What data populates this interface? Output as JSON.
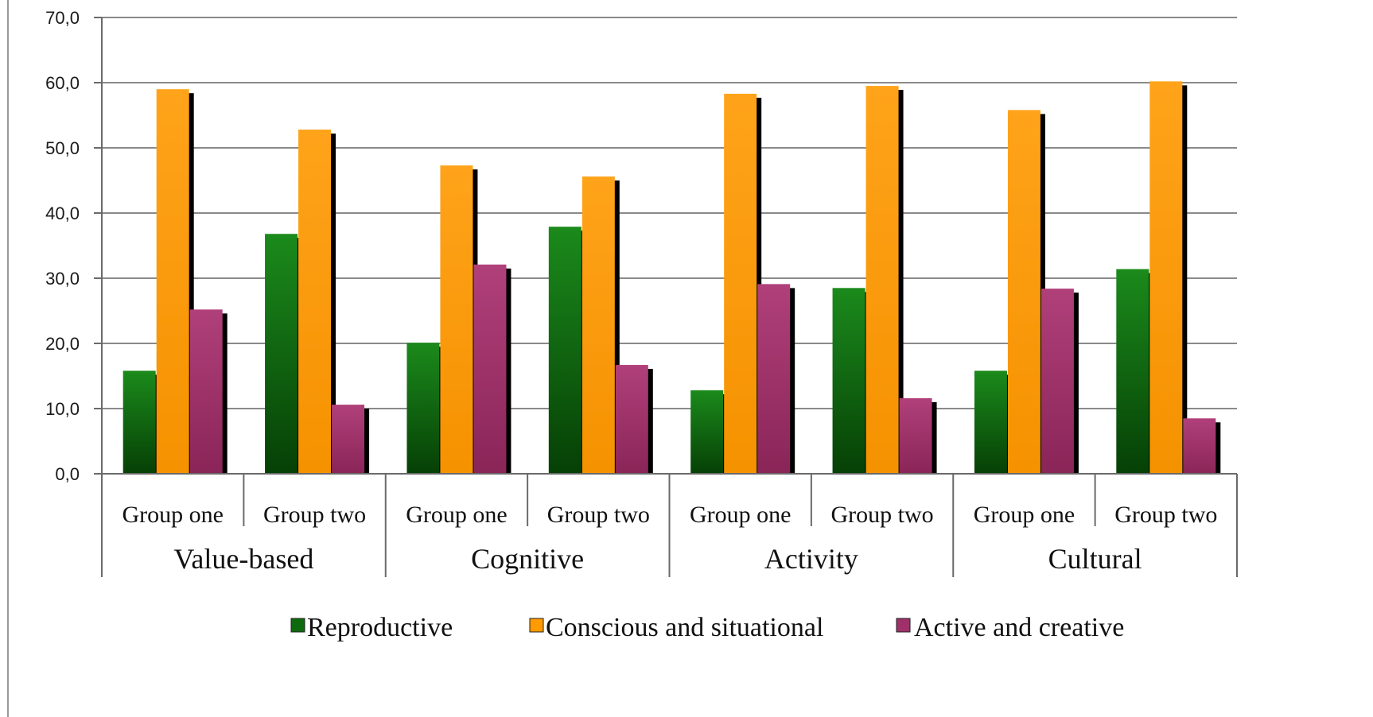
{
  "chart_data": {
    "type": "bar",
    "groups": [
      {
        "label": "Value-based",
        "subcategories": [
          "Group one",
          "Group two"
        ]
      },
      {
        "label": "Cognitive",
        "subcategories": [
          "Group one",
          "Group two"
        ]
      },
      {
        "label": "Activity",
        "subcategories": [
          "Group one",
          "Group two"
        ]
      },
      {
        "label": "Cultural",
        "subcategories": [
          "Group one",
          "Group two"
        ]
      }
    ],
    "series": [
      {
        "name": "Reproductive",
        "color": "#0d6b0d",
        "values": [
          15.8,
          36.8,
          20.1,
          37.9,
          12.8,
          28.5,
          15.8,
          31.4
        ]
      },
      {
        "name": "Conscious and situational",
        "color": "#ff9a00",
        "values": [
          59.0,
          52.8,
          47.3,
          45.6,
          58.3,
          59.5,
          55.8,
          60.2
        ]
      },
      {
        "name": "Active and creative",
        "color": "#a0306a",
        "values": [
          25.2,
          10.6,
          32.1,
          16.7,
          29.1,
          11.6,
          28.4,
          8.5
        ]
      }
    ],
    "y_ticks": [
      "0,0",
      "10,0",
      "20,0",
      "30,0",
      "40,0",
      "50,0",
      "60,0",
      "70,0"
    ],
    "ylim": [
      0,
      70
    ],
    "grid": true,
    "legend_position": "bottom"
  }
}
